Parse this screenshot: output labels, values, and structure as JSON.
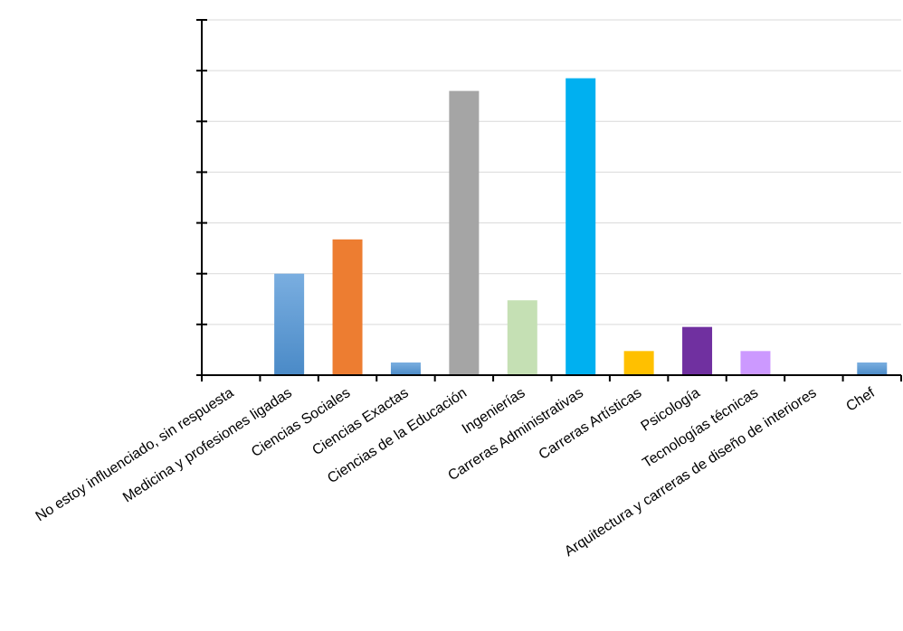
{
  "chart_data": {
    "type": "bar",
    "title": "",
    "xlabel": "",
    "ylabel": "",
    "ylim": [
      0,
      14
    ],
    "y_tick_step": 2,
    "grid": true,
    "categories": [
      "No estoy influenciado, sin respuesta",
      "Medicina y profesiones ligadas",
      "Ciencias Sociales",
      "Ciencias Exactas",
      "Ciencias de la Educación",
      "Ingenierías",
      "Carreras Administrativas",
      "Carreras Artísticas",
      "Psicología",
      "Tecnologías técnicas",
      "Arquitectura y carreras de diseño de interiores",
      "Chef"
    ],
    "values": [
      0,
      4,
      5.35,
      0.5,
      11.2,
      2.95,
      11.7,
      0.95,
      1.9,
      0.95,
      0,
      0.5
    ],
    "colors": [
      "#5b9bd5",
      "#5b9bd5",
      "#ed7d31",
      "#5b9bd5",
      "#a5a5a5",
      "#c5e0b4",
      "#00b0f0",
      "#ffc000",
      "#7030a0",
      "#cc99ff",
      "#5b9bd5",
      "#5b9bd5"
    ]
  }
}
